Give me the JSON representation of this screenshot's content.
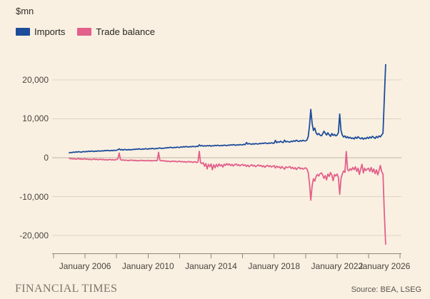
{
  "header": {
    "unit_label": "$mn"
  },
  "footer": {
    "brand": "FINANCIAL TIMES",
    "source": "Source: BEA, LSEG"
  },
  "colors": {
    "background": "#faf0e2",
    "gridline": "#ddd3c4",
    "zero_line": "#bdb4a6",
    "axis": "#8e867b",
    "axis_text": "#4a443c",
    "imports": "#1d4d9a",
    "trade_balance": "#e2608a"
  },
  "chart_data": {
    "type": "line",
    "title": "",
    "ylabel": "$mn",
    "grid": true,
    "legend_position": "top-left",
    "frequency": "monthly",
    "x_start": {
      "year": 2005,
      "month": 1
    },
    "x_axis_range_years": [
      2004,
      2026.5
    ],
    "ylim": [
      -25000,
      25000
    ],
    "y_ticks": [
      {
        "value": 20000,
        "label": "20,000"
      },
      {
        "value": 10000,
        "label": "10,000"
      },
      {
        "value": 0,
        "label": "0"
      },
      {
        "value": -10000,
        "label": "-10,000"
      },
      {
        "value": -20000,
        "label": "-20,000"
      }
    ],
    "x_ticks_years": [
      2004,
      2006,
      2008,
      2010,
      2012,
      2014,
      2016,
      2018,
      2020,
      2022,
      2024,
      2026
    ],
    "x_labels": [
      {
        "text": "January 2006",
        "year": 2006
      },
      {
        "text": "January 2010",
        "year": 2010
      },
      {
        "text": "January 2014",
        "year": 2014
      },
      {
        "text": "January 2018",
        "year": 2018
      },
      {
        "text": "January 2022",
        "year": 2022
      },
      {
        "text": "January 2026",
        "year": 2026
      }
    ],
    "series": [
      {
        "name": "Imports",
        "color": "#1d4d9a",
        "values": [
          1250,
          1350,
          1300,
          1450,
          1380,
          1500,
          1420,
          1550,
          1480,
          1400,
          1520,
          1580,
          1500,
          1620,
          1550,
          1680,
          1600,
          1720,
          1650,
          1580,
          1700,
          1640,
          1750,
          1700,
          1680,
          1800,
          1720,
          1850,
          1780,
          1900,
          1820,
          1750,
          1880,
          1800,
          1920,
          1850,
          1900,
          2050,
          2250,
          2000,
          2100,
          1950,
          2150,
          2050,
          1980,
          2120,
          2000,
          2080,
          2050,
          2180,
          2100,
          2250,
          2150,
          2300,
          2200,
          2120,
          2280,
          2180,
          2320,
          2250,
          2200,
          2350,
          2280,
          2400,
          2320,
          2250,
          2380,
          2300,
          2450,
          2500,
          2380,
          2420,
          2400,
          2550,
          2480,
          2620,
          2550,
          2700,
          2600,
          2520,
          2680,
          2580,
          2720,
          2650,
          2620,
          2780,
          2700,
          2850,
          2750,
          2900,
          2800,
          2720,
          2880,
          2780,
          2920,
          2850,
          2800,
          2950,
          2880,
          3300,
          3000,
          3150,
          2950,
          3080,
          2980,
          3120,
          3020,
          3150,
          2950,
          3100,
          3020,
          3180,
          3080,
          3220,
          3100,
          3040,
          3180,
          3100,
          3250,
          3150,
          3100,
          3250,
          3180,
          3320,
          3220,
          3380,
          3250,
          3180,
          3330,
          3230,
          3380,
          3300,
          3280,
          3450,
          3350,
          3900,
          3500,
          3650,
          3520,
          3420,
          3600,
          3480,
          3650,
          3550,
          3500,
          3680,
          3580,
          3750,
          3650,
          3820,
          3700,
          3600,
          3780,
          3680,
          3850,
          3720,
          3700,
          4450,
          3850,
          4100,
          3950,
          4250,
          4000,
          3900,
          4500,
          4050,
          4200,
          4080,
          4000,
          4250,
          4120,
          4380,
          4200,
          4500,
          4280,
          4150,
          4400,
          4250,
          4480,
          4320,
          4300,
          4500,
          5400,
          8200,
          12400,
          8800,
          7000,
          7600,
          6400,
          5900,
          6200,
          5800,
          5600,
          6100,
          6800,
          6300,
          5800,
          6400,
          5900,
          5500,
          6200,
          5700,
          6000,
          5600,
          5800,
          6400,
          11200,
          7000,
          5800,
          5300,
          5600,
          5100,
          5400,
          5000,
          5250,
          4900,
          5100,
          4800,
          5300,
          4950,
          5400,
          5050,
          4850,
          5150,
          4750,
          5050,
          4850,
          5250,
          4950,
          5350,
          5050,
          5500,
          5200,
          4950,
          5450,
          5150,
          5600,
          5350,
          5850,
          6300,
          15000,
          23900
        ]
      },
      {
        "name": "Trade balance",
        "color": "#e2608a",
        "values": [
          -150,
          -300,
          -200,
          -350,
          -250,
          -400,
          -300,
          -200,
          -380,
          -280,
          -420,
          -320,
          -280,
          -430,
          -330,
          -480,
          -380,
          -520,
          -400,
          -320,
          -480,
          -380,
          -530,
          -430,
          -380,
          -530,
          -430,
          -580,
          -480,
          -630,
          -500,
          -420,
          -580,
          -480,
          -630,
          -520,
          -450,
          -250,
          1200,
          -500,
          -650,
          -550,
          -700,
          -580,
          -680,
          -750,
          -620,
          -700,
          -600,
          -750,
          -650,
          -800,
          -700,
          -820,
          -720,
          -640,
          -780,
          -700,
          -830,
          -740,
          -680,
          -820,
          -720,
          -850,
          -760,
          -680,
          -800,
          -720,
          1400,
          -650,
          -820,
          -740,
          -780,
          -920,
          -820,
          -980,
          -880,
          -1050,
          -920,
          -840,
          -1000,
          -900,
          -1060,
          -950,
          -900,
          -1050,
          -950,
          -1120,
          -1000,
          -1180,
          -1050,
          -950,
          -1130,
          -1020,
          -1200,
          -1080,
          -1050,
          -1250,
          -1100,
          1650,
          -1300,
          -1500,
          -1250,
          -2200,
          -1500,
          -2900,
          -1700,
          -2300,
          -1600,
          -3100,
          -1800,
          -2600,
          -1700,
          -2300,
          -1600,
          -2100,
          -1800,
          -2400,
          -1650,
          -2000,
          -1500,
          -1900,
          -1600,
          -2050,
          -1700,
          -2150,
          -1800,
          -1600,
          -2000,
          -1750,
          -2100,
          -1850,
          -1700,
          -2050,
          -1800,
          -2250,
          -1900,
          -2300,
          -2000,
          -1800,
          -2150,
          -1950,
          -2300,
          -2050,
          -1850,
          -2150,
          -1950,
          -2350,
          -2050,
          -2450,
          -2150,
          -1950,
          -2300,
          -2050,
          -2400,
          -2200,
          -2000,
          -2650,
          -2150,
          -2500,
          -2300,
          -2750,
          -2250,
          -2600,
          -2950,
          -2350,
          -2550,
          -2450,
          -2250,
          -2750,
          -2450,
          -2850,
          -2550,
          -3050,
          -2650,
          -2450,
          -2850,
          -2650,
          -2950,
          -2750,
          -2600,
          -2850,
          -3800,
          -6600,
          -10900,
          -7200,
          -5400,
          -6000,
          -4800,
          -4300,
          -4700,
          -4100,
          -3900,
          -4400,
          -5300,
          -4600,
          -5700,
          -4200,
          -4800,
          -3800,
          -4500,
          -5900,
          -4300,
          -4700,
          -4200,
          -5000,
          -9400,
          -5400,
          -4200,
          -3400,
          -3800,
          1600,
          -3000,
          -3400,
          -2800,
          -3200,
          -2500,
          -3100,
          -2300,
          -3500,
          -2700,
          -4300,
          -2900,
          -1700,
          -3900,
          -2700,
          -3300,
          -2900,
          -2700,
          -3500,
          -2500,
          -3700,
          -2900,
          -4100,
          -3100,
          -4400,
          -3300,
          -2000,
          -3600,
          -4200,
          -14000,
          -22200
        ]
      }
    ]
  }
}
